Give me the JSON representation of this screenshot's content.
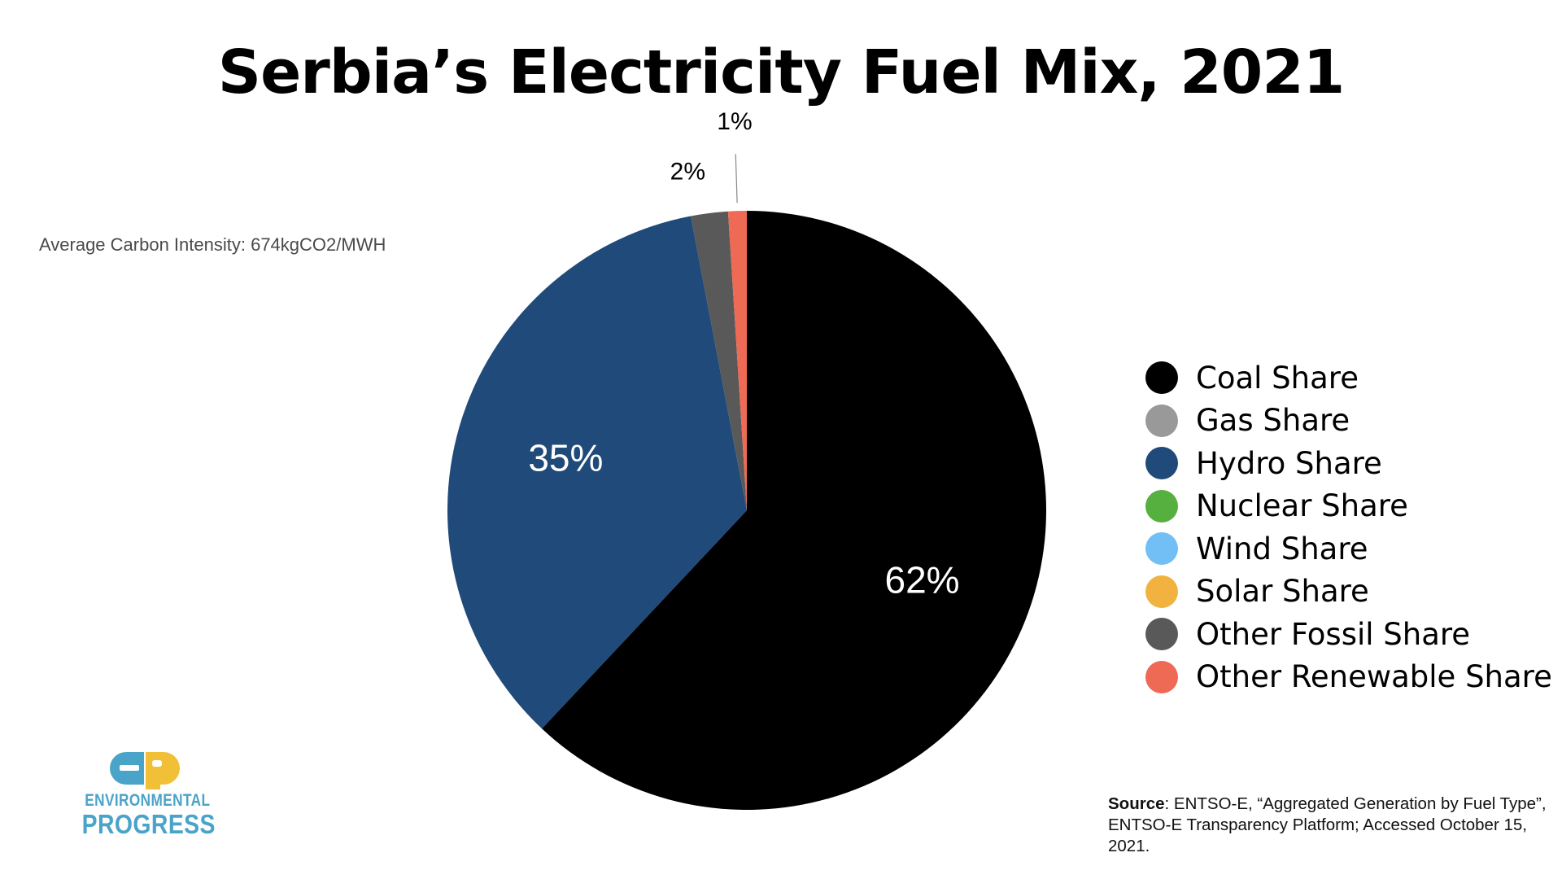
{
  "title": "Serbia’s Electricity Fuel Mix, 2021",
  "annotation": "Average Carbon Intensity: 674kgCO2/MWH",
  "chart_data": {
    "type": "pie",
    "title": "Serbia’s Electricity Fuel Mix, 2021",
    "slices": [
      {
        "name": "Coal Share",
        "value": 62,
        "label": "62%",
        "color": "#000000"
      },
      {
        "name": "Hydro Share",
        "value": 35,
        "label": "35%",
        "color": "#1f4a79"
      },
      {
        "name": "Other Fossil Share",
        "value": 2,
        "label": "2%",
        "color": "#595959"
      },
      {
        "name": "Other Renewable Share",
        "value": 1,
        "label": "1%",
        "color": "#ee6a55"
      }
    ],
    "legend": {
      "position": "right",
      "items": [
        {
          "name": "Coal Share",
          "color": "#000000"
        },
        {
          "name": "Gas Share",
          "color": "#999999"
        },
        {
          "name": "Hydro Share",
          "color": "#1f4a79"
        },
        {
          "name": "Nuclear Share",
          "color": "#55b03f"
        },
        {
          "name": "Wind Share",
          "color": "#72bff5"
        },
        {
          "name": "Solar Share",
          "color": "#f1b240"
        },
        {
          "name": "Other Fossil Share",
          "color": "#595959"
        },
        {
          "name": "Other Renewable Share",
          "color": "#ee6a55"
        }
      ]
    }
  },
  "source": {
    "label": "Source",
    "text": ": ENTSO-E, “Aggregated Generation by Fuel Type”, ENTSO-E Transparency Platform; Accessed October 15, 2021."
  },
  "logo": {
    "mark": "ep",
    "line1": "ENVIRONMENTAL",
    "line2": "PROGRESS",
    "colors": {
      "blue": "#4aa3c8",
      "yellow": "#f2c037"
    }
  }
}
